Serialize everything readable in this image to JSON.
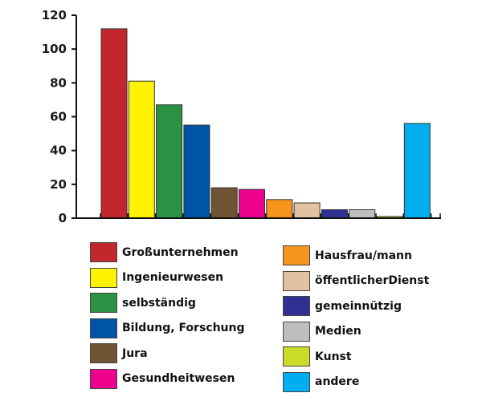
{
  "chart_data": {
    "type": "bar",
    "title": "",
    "xlabel": "",
    "ylabel": "",
    "ylim": [
      0,
      120
    ],
    "yticks": [
      0,
      20,
      40,
      60,
      80,
      100,
      120
    ],
    "grid": false,
    "legend_position": "bottom",
    "categories": [
      "Großunternehmen",
      "Ingenieurwesen",
      "selbständig",
      "Bildung, Forschung",
      "Jura",
      "Gesundheitwesen",
      "Hausfrau/mann",
      "öffentlicherDienst",
      "gemeinnützig",
      "Medien",
      "Kunst",
      "andere"
    ],
    "values": [
      112,
      81,
      67,
      55,
      18,
      17,
      11,
      9,
      5,
      5,
      1,
      56
    ],
    "colors": [
      "#c1272d",
      "#fff200",
      "#2b9245",
      "#0054a6",
      "#6e5434",
      "#ec008c",
      "#f7941d",
      "#e3c2a4",
      "#2e3192",
      "#bcbec0",
      "#cbdb2a",
      "#00aeef"
    ]
  },
  "legend": {
    "left": [
      {
        "label": "Großunternehmen",
        "color": "#c1272d"
      },
      {
        "label": "Ingenieurwesen",
        "color": "#fff200"
      },
      {
        "label": "selbständig",
        "color": "#2b9245"
      },
      {
        "label": "Bildung, Forschung",
        "color": "#0054a6"
      },
      {
        "label": "Jura",
        "color": "#6e5434"
      },
      {
        "label": "Gesundheitwesen",
        "color": "#ec008c"
      }
    ],
    "right": [
      {
        "label": "Hausfrau/mann",
        "color": "#f7941d"
      },
      {
        "label": "öffentlicherDienst",
        "color": "#e3c2a4"
      },
      {
        "label": "gemeinnützig",
        "color": "#2e3192"
      },
      {
        "label": "Medien",
        "color": "#bcbec0"
      },
      {
        "label": "Kunst",
        "color": "#cbdb2a"
      },
      {
        "label": "andere",
        "color": "#00aeef"
      }
    ]
  }
}
